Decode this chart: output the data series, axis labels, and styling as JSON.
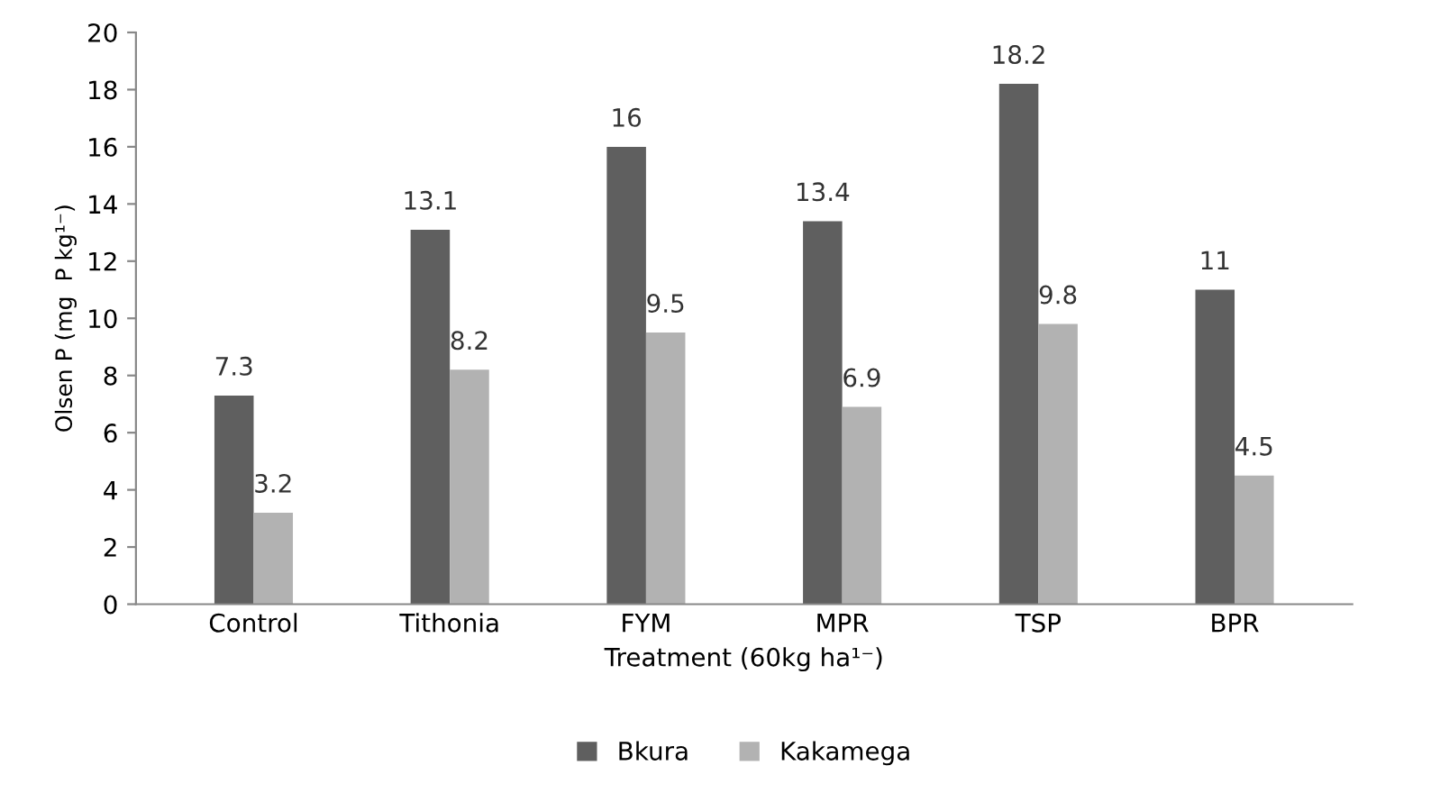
{
  "chart_data": {
    "type": "bar",
    "xlabel": "Treatment (60kg ha¹⁻)",
    "ylabel": "Olsen P (mg  P kg¹⁻)",
    "categories": [
      "Control",
      "Tithonia",
      "FYM",
      "MPR",
      "TSP",
      "BPR"
    ],
    "series": [
      {
        "name": "Bkura",
        "color": "#5f5f5f",
        "values": [
          7.3,
          13.1,
          16,
          13.4,
          18.2,
          11
        ]
      },
      {
        "name": "Kakamega",
        "color": "#b2b2b2",
        "values": [
          3.2,
          8.2,
          9.5,
          6.9,
          9.8,
          4.5
        ]
      }
    ],
    "ylim": [
      0,
      20
    ],
    "yticks": [
      0,
      2,
      4,
      6,
      8,
      10,
      12,
      14,
      16,
      18,
      20
    ],
    "grid": false,
    "legend": "bottom",
    "data_labels": true
  }
}
